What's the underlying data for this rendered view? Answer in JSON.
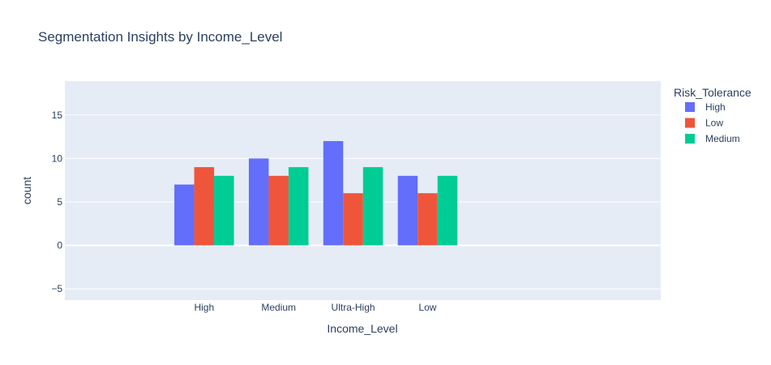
{
  "chart_data": {
    "type": "bar",
    "title": "Segmentation Insights by Income_Level",
    "xlabel": "Income_Level",
    "ylabel": "count",
    "categories": [
      "High",
      "Medium",
      "Ultra-High",
      "Low"
    ],
    "x_range": [
      -1.87,
      6.13
    ],
    "ylim": [
      -6.3,
      18.9
    ],
    "y_ticks": [
      -5,
      0,
      5,
      10,
      15
    ],
    "y_tick_labels": [
      "−5",
      "0",
      "5",
      "10",
      "15"
    ],
    "grid": true,
    "legend": {
      "title": "Risk_Tolerance",
      "placement": "top-right"
    },
    "series": [
      {
        "name": "High",
        "color": "#636efa",
        "values": [
          7,
          10,
          12,
          8
        ]
      },
      {
        "name": "Low",
        "color": "#EF553B",
        "values": [
          9,
          8,
          6,
          6
        ]
      },
      {
        "name": "Medium",
        "color": "#00cc96",
        "values": [
          8,
          9,
          9,
          8
        ]
      }
    ]
  },
  "colors": {
    "plot_background": "#e5ecf6",
    "gridline": "#ffffff",
    "text": "#2a3f5f"
  }
}
